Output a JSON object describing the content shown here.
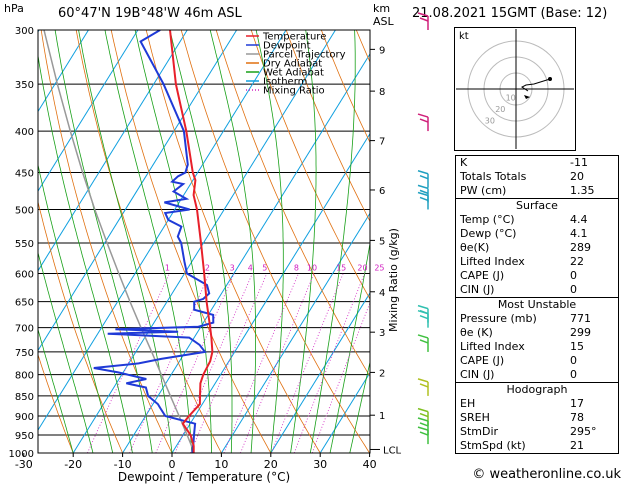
{
  "header": {
    "location": "60°47'N  19B°48'W  46m  ASL",
    "datetime": "21.08.2021  15GMT  (Base: 12)",
    "left_unit": "hPa",
    "km_unit": "km",
    "asl_unit": "ASL"
  },
  "credit": "© weatheronline.co.uk",
  "chart_data": {
    "type": "line",
    "xlabel": "Dewpoint / Temperature (°C)",
    "right_axis_label": "Mixing Ratio (g/kg)",
    "x_ticks": [
      -30,
      -20,
      -10,
      0,
      10,
      20,
      30,
      40
    ],
    "pressure_ticks": [
      300,
      350,
      400,
      450,
      500,
      550,
      600,
      650,
      700,
      750,
      800,
      850,
      900,
      950,
      1000
    ],
    "km_ticks": [
      {
        "label": "9",
        "p": 317
      },
      {
        "label": "8",
        "p": 357
      },
      {
        "label": "7",
        "p": 411
      },
      {
        "label": "6",
        "p": 473
      },
      {
        "label": "5",
        "p": 546
      },
      {
        "label": "4",
        "p": 632
      },
      {
        "label": "3",
        "p": 709
      },
      {
        "label": "2",
        "p": 795
      },
      {
        "label": "1",
        "p": 898
      }
    ],
    "lcl_label": "LCL",
    "mixing_ratio_labels": [
      "1",
      "2",
      "3",
      "4",
      "5",
      "8",
      "10",
      "15",
      "20",
      "25"
    ],
    "legend": [
      {
        "name": "Temperature",
        "color": "#e8202a"
      },
      {
        "name": "Dewpoint",
        "color": "#1f3ad7"
      },
      {
        "name": "Parcel Trajectory",
        "color": "#999999"
      },
      {
        "name": "Dry Adiabat",
        "color": "#e07010"
      },
      {
        "name": "Wet Adiabat",
        "color": "#18a018"
      },
      {
        "name": "Isotherm",
        "color": "#10a0e0"
      },
      {
        "name": "Mixing Ratio",
        "color": "#d020c0"
      }
    ],
    "series": [
      {
        "name": "Temperature",
        "color": "#e8202a",
        "points": [
          [
            1000,
            4.4
          ],
          [
            980,
            3.5
          ],
          [
            950,
            1.5
          ],
          [
            920,
            -1.5
          ],
          [
            900,
            -1.2
          ],
          [
            870,
            -0.5
          ],
          [
            850,
            -1.5
          ],
          [
            820,
            -3.0
          ],
          [
            800,
            -3.5
          ],
          [
            770,
            -3.8
          ],
          [
            750,
            -4.5
          ],
          [
            720,
            -6.5
          ],
          [
            700,
            -8.0
          ],
          [
            650,
            -12.0
          ],
          [
            600,
            -16.0
          ],
          [
            550,
            -20.5
          ],
          [
            500,
            -25.5
          ],
          [
            480,
            -28.0
          ],
          [
            460,
            -29.5
          ],
          [
            450,
            -31.0
          ],
          [
            400,
            -37.5
          ],
          [
            350,
            -45.5
          ],
          [
            300,
            -53.5
          ]
        ]
      },
      {
        "name": "Dewpoint",
        "color": "#1f3ad7",
        "points": [
          [
            1000,
            4.1
          ],
          [
            970,
            3.0
          ],
          [
            950,
            2.2
          ],
          [
            920,
            1.0
          ],
          [
            900,
            -6.0
          ],
          [
            880,
            -8.0
          ],
          [
            870,
            -9.0
          ],
          [
            850,
            -12.0
          ],
          [
            830,
            -13.5
          ],
          [
            820,
            -18.0
          ],
          [
            810,
            -14.5
          ],
          [
            795,
            -21.0
          ],
          [
            785,
            -26.5
          ],
          [
            775,
            -18.0
          ],
          [
            765,
            -14.0
          ],
          [
            750,
            -6.0
          ],
          [
            735,
            -8.0
          ],
          [
            720,
            -11.0
          ],
          [
            712,
            -28.0
          ],
          [
            708,
            -14.0
          ],
          [
            703,
            -27.0
          ],
          [
            698,
            -10.5
          ],
          [
            690,
            -8.0
          ],
          [
            675,
            -9.0
          ],
          [
            665,
            -13.5
          ],
          [
            650,
            -14.5
          ],
          [
            645,
            -13.0
          ],
          [
            635,
            -12.5
          ],
          [
            620,
            -14.0
          ],
          [
            600,
            -19.5
          ],
          [
            580,
            -21.5
          ],
          [
            550,
            -24.5
          ],
          [
            540,
            -26.0
          ],
          [
            525,
            -26.5
          ],
          [
            515,
            -30.0
          ],
          [
            505,
            -31.5
          ],
          [
            500,
            -27.0
          ],
          [
            490,
            -33.0
          ],
          [
            485,
            -29.0
          ],
          [
            475,
            -32.5
          ],
          [
            465,
            -31.5
          ],
          [
            462,
            -34.0
          ],
          [
            455,
            -33.5
          ],
          [
            450,
            -32.5
          ],
          [
            440,
            -33.0
          ],
          [
            400,
            -38.0
          ],
          [
            350,
            -48.0
          ],
          [
            310,
            -58.0
          ],
          [
            300,
            -55.5
          ]
        ]
      },
      {
        "name": "Parcel Trajectory",
        "color": "#999999",
        "points": [
          [
            1000,
            4.4
          ],
          [
            990,
            3.8
          ],
          [
            950,
            0.8
          ],
          [
            900,
            -3.2
          ],
          [
            850,
            -7.5
          ],
          [
            800,
            -12.0
          ],
          [
            750,
            -16.8
          ],
          [
            700,
            -22.0
          ],
          [
            650,
            -27.5
          ],
          [
            600,
            -33.3
          ],
          [
            550,
            -39.5
          ],
          [
            500,
            -46.2
          ],
          [
            450,
            -53.3
          ],
          [
            400,
            -61.0
          ],
          [
            350,
            -69.5
          ],
          [
            300,
            -79.0
          ]
        ]
      }
    ],
    "wind_barbs": [
      {
        "p": 300,
        "color": "#d0207a"
      },
      {
        "p": 400,
        "color": "#d0207a"
      },
      {
        "p": 470,
        "color": "#20a0c0"
      },
      {
        "p": 490,
        "color": "#20a0c0"
      },
      {
        "p": 500,
        "color": "#20a0c0"
      },
      {
        "p": 690,
        "color": "#30c0b0"
      },
      {
        "p": 700,
        "color": "#30c0b0"
      },
      {
        "p": 750,
        "color": "#40c040"
      },
      {
        "p": 850,
        "color": "#b0c020"
      },
      {
        "p": 925,
        "color": "#80c020"
      },
      {
        "p": 950,
        "color": "#40c040"
      },
      {
        "p": 975,
        "color": "#40c040"
      }
    ]
  },
  "hodograph": {
    "unit_label": "kt",
    "ring_labels": [
      "10",
      "20",
      "30"
    ]
  },
  "stats": {
    "basic": [
      {
        "label": "K",
        "value": "-11"
      },
      {
        "label": "Totals Totals",
        "value": "20"
      },
      {
        "label": "PW (cm)",
        "value": "1.35"
      }
    ],
    "surface_title": "Surface",
    "surface": [
      {
        "label": "Temp (°C)",
        "value": "4.4"
      },
      {
        "label": "Dewp (°C)",
        "value": "4.1"
      },
      {
        "label": "θe(K)",
        "value": "289"
      },
      {
        "label": "Lifted Index",
        "value": "22"
      },
      {
        "label": "CAPE (J)",
        "value": "0"
      },
      {
        "label": "CIN (J)",
        "value": "0"
      }
    ],
    "mu_title": "Most Unstable",
    "mu": [
      {
        "label": "Pressure (mb)",
        "value": "771"
      },
      {
        "label": "θe (K)",
        "value": "299"
      },
      {
        "label": "Lifted Index",
        "value": "15"
      },
      {
        "label": "CAPE (J)",
        "value": "0"
      },
      {
        "label": "CIN (J)",
        "value": "0"
      }
    ],
    "hodo_title": "Hodograph",
    "hodo": [
      {
        "label": "EH",
        "value": "17"
      },
      {
        "label": "SREH",
        "value": "78"
      },
      {
        "label": "StmDir",
        "value": "295°"
      },
      {
        "label": "StmSpd (kt)",
        "value": "21"
      }
    ]
  }
}
